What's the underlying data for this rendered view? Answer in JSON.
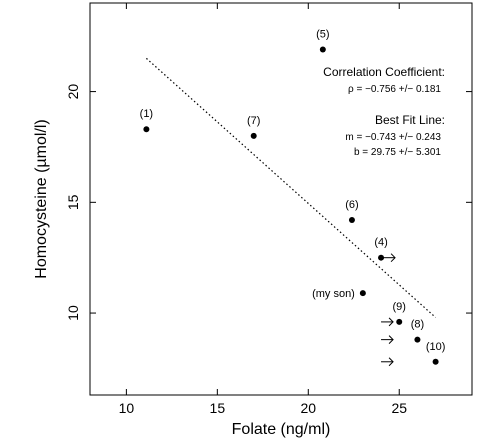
{
  "chart_data": {
    "type": "scatter",
    "title": "",
    "xlabel": "Folate (ng/ml)",
    "ylabel": "Homocysteine (µmol/l)",
    "xlim": [
      8,
      29
    ],
    "ylim": [
      6.3,
      24
    ],
    "xticks": [
      10,
      15,
      20,
      25
    ],
    "yticks": [
      10,
      15,
      20
    ],
    "grid": false,
    "points": [
      {
        "label": "(1)",
        "x": 11.1,
        "y": 18.3
      },
      {
        "label": "(5)",
        "x": 20.8,
        "y": 21.9
      },
      {
        "label": "(7)",
        "x": 17.0,
        "y": 18.0
      },
      {
        "label": "(6)",
        "x": 22.4,
        "y": 14.2
      },
      {
        "label": "(4)",
        "x": 24.0,
        "y": 12.5,
        "arrow": true
      },
      {
        "label": "(my son)",
        "x": 23.0,
        "y": 10.9
      },
      {
        "label": "(9)",
        "x": 25.0,
        "y": 9.6
      },
      {
        "label": "(8)",
        "x": 26.0,
        "y": 8.8
      },
      {
        "label": "(10)",
        "x": 27.0,
        "y": 7.8
      }
    ],
    "extra_arrows": [
      {
        "x": 24.0,
        "y": 9.6
      },
      {
        "x": 24.0,
        "y": 8.8
      },
      {
        "x": 24.0,
        "y": 7.8
      }
    ],
    "fit_line": {
      "x": [
        11.1,
        27.0
      ],
      "y": [
        21.5,
        9.8
      ]
    },
    "annotations": {
      "corr_title": "Correlation Coefficient:",
      "corr_value": "ρ = −0.756 +/− 0.181",
      "fit_title": "Best Fit Line:",
      "fit_m": "m = −0.743 +/− 0.243",
      "fit_b": "b = 29.75 +/− 5.301"
    }
  }
}
